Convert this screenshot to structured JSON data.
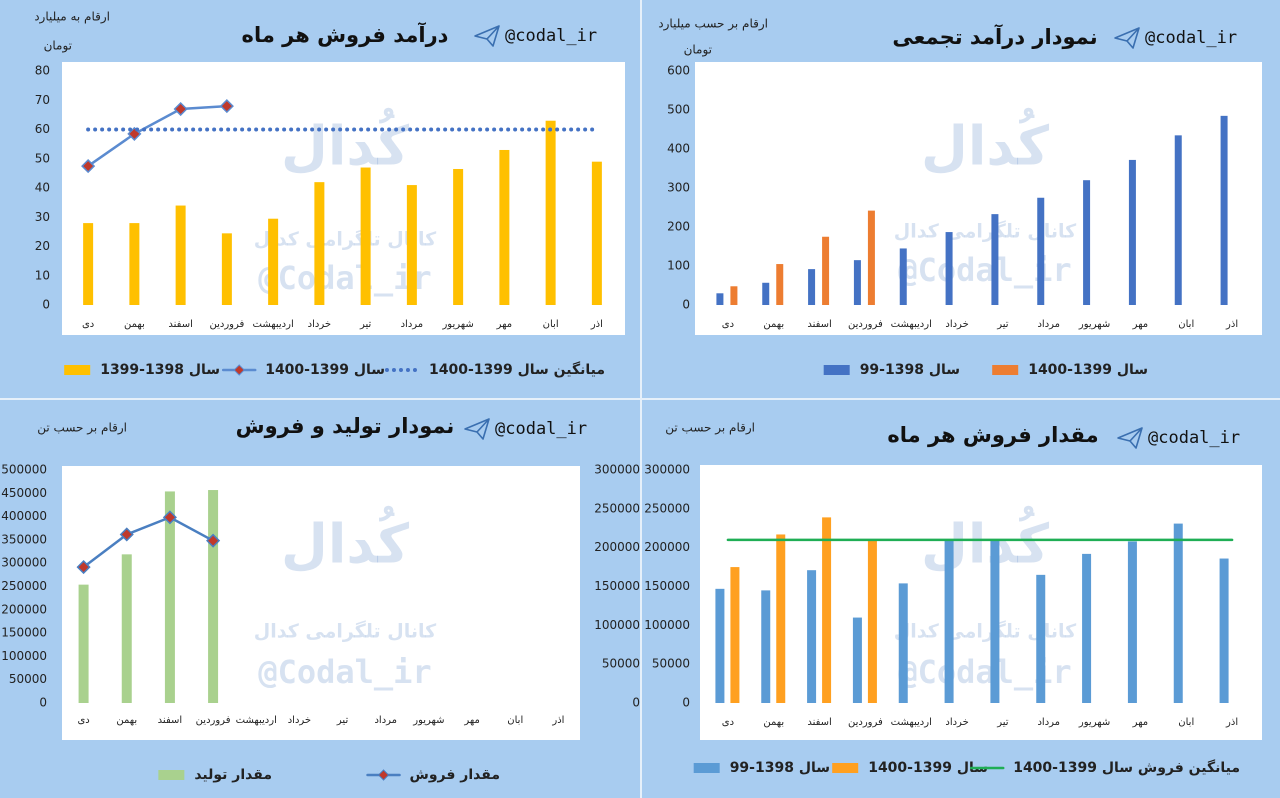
{
  "chart_data": [
    {
      "type": "bar",
      "title": "درآمد فروش هر ماه",
      "handle": "@codal_ir",
      "unit_lines": [
        "ارقام به میلیارد",
        "تومان"
      ],
      "watermark": [
        "کُدال",
        "کانال تلگرامی کدال",
        "@Codal_ir"
      ],
      "categories": [
        "دی",
        "بهمن",
        "اسفند",
        "فروردین",
        "اردیبهشت",
        "خرداد",
        "تیر",
        "مرداد",
        "شهریور",
        "مهر",
        "ابان",
        "اذر"
      ],
      "series": [
        {
          "name": "سال 1398-1399",
          "color": "#ffc000",
          "values": [
            28,
            28,
            34,
            24.5,
            29.5,
            42,
            47,
            41,
            46.5,
            53,
            63,
            49
          ]
        },
        {
          "name": "سال 1399-1400",
          "type": "line",
          "color": "#5b8bd0",
          "marker_color": "#c0392b",
          "values": [
            47.5,
            58.5,
            67,
            68,
            null,
            null,
            null,
            null,
            null,
            null,
            null,
            null
          ]
        },
        {
          "name": "میانگین سال 1399-1400",
          "type": "line",
          "style": "dotted",
          "color": "#4472c4",
          "values": [
            60,
            60,
            60,
            60,
            60,
            60,
            60,
            60,
            60,
            60,
            60,
            60
          ]
        }
      ],
      "ylim": [
        0,
        80
      ],
      "yticks": [
        0,
        10,
        20,
        30,
        40,
        50,
        60,
        70,
        80
      ]
    },
    {
      "type": "bar",
      "title": "نمودار درآمد تجمعی",
      "handle": "@codal_ir",
      "unit_lines": [
        "ارقام بر حسب میلیارد",
        "تومان"
      ],
      "watermark": [
        "کُدال",
        "کانال تلگرامی کدال",
        "@Codal_ir"
      ],
      "categories": [
        "دی",
        "بهمن",
        "اسفند",
        "فروردین",
        "اردیبهشت",
        "خرداد",
        "تیر",
        "مرداد",
        "شهریور",
        "مهر",
        "ابان",
        "اذر"
      ],
      "series": [
        {
          "name": "سال 1398-99",
          "color": "#4472c4",
          "values": [
            30,
            57,
            92,
            115,
            145,
            187,
            233,
            275,
            320,
            372,
            435,
            485
          ]
        },
        {
          "name": "سال 1399-1400",
          "color": "#ed7d31",
          "values": [
            48,
            105,
            175,
            242,
            null,
            null,
            null,
            null,
            null,
            null,
            null,
            null
          ]
        }
      ],
      "ylim": [
        0,
        600
      ],
      "yticks": [
        0,
        100,
        200,
        300,
        400,
        500,
        600
      ]
    },
    {
      "type": "bar",
      "title": "نمودار تولید و فروش",
      "handle": "@codal_ir",
      "unit_lines": [
        "ارقام بر حسب تن"
      ],
      "watermark": [
        "کُدال",
        "کانال تلگرامی کدال",
        "@Codal_ir"
      ],
      "categories": [
        "دی",
        "بهمن",
        "اسفند",
        "فروردین",
        "اردیبهشت",
        "خرداد",
        "تیر",
        "مرداد",
        "شهریور",
        "مهر",
        "ابان",
        "اذر"
      ],
      "series": [
        {
          "name": "مقدار تولید",
          "color": "#a9d18e",
          "values": [
            254000,
            319000,
            454000,
            457000,
            null,
            null,
            null,
            null,
            null,
            null,
            null,
            null
          ]
        },
        {
          "name": "مقدار فروش",
          "type": "line",
          "axis": "y2",
          "color": "#4a7fc1",
          "marker_color": "#c0392b",
          "values": [
            175000,
            217000,
            239000,
            209000,
            null,
            null,
            null,
            null,
            null,
            null,
            null,
            null
          ]
        }
      ],
      "ylim": [
        0,
        500000
      ],
      "yticks": [
        0,
        50000,
        100000,
        150000,
        200000,
        250000,
        300000,
        350000,
        400000,
        450000,
        500000
      ],
      "y2lim": [
        0,
        300000
      ],
      "y2ticks": [
        0,
        50000,
        100000,
        150000,
        200000,
        250000,
        300000
      ]
    },
    {
      "type": "bar",
      "title": "مقدار فروش هر ماه",
      "handle": "@codal_ir",
      "unit_lines": [
        "ارقام بر حسب تن"
      ],
      "watermark": [
        "کُدال",
        "کانال تلگرامی کدال",
        "@Codal_ir"
      ],
      "categories": [
        "دی",
        "بهمن",
        "اسفند",
        "فروردین",
        "اردیبهشت",
        "خرداد",
        "تیر",
        "مرداد",
        "شهریور",
        "مهر",
        "ابان",
        "اذر"
      ],
      "series": [
        {
          "name": "سال 1398-99",
          "color": "#5b9bd5",
          "values": [
            147000,
            145000,
            171000,
            110000,
            154000,
            209000,
            210000,
            165000,
            192000,
            208000,
            231000,
            186000
          ]
        },
        {
          "name": "سال 1399-1400",
          "color": "#ffa020",
          "values": [
            175000,
            217000,
            239000,
            209000,
            null,
            null,
            null,
            null,
            null,
            null,
            null,
            null
          ]
        },
        {
          "name": "میانگین فروش سال 1399-1400",
          "type": "line",
          "color": "#1fae55",
          "values": [
            210000,
            210000,
            210000,
            210000,
            210000,
            210000,
            210000,
            210000,
            210000,
            210000,
            210000,
            210000
          ]
        }
      ],
      "ylim": [
        0,
        300000
      ],
      "yticks": [
        0,
        50000,
        100000,
        150000,
        200000,
        250000,
        300000
      ]
    }
  ]
}
